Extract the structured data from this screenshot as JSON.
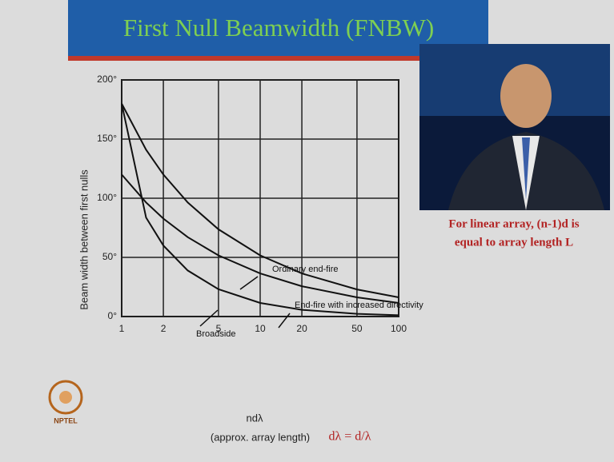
{
  "slide": {
    "title": "First Null Beamwidth (FNBW)",
    "note_line1": "For linear array, (n-1)d is",
    "note_line2": "equal to array length L",
    "d_lambda_note": "dλ = d/λ",
    "logo_text": "NPTEL"
  },
  "chart_data": {
    "type": "line",
    "x_label": "ndλ",
    "x_label_sub": "(approx. array length)",
    "y_label": "Beam width between first nulls",
    "x": [
      1,
      1.5,
      2,
      3,
      5,
      10,
      20,
      50,
      100
    ],
    "xlim": [
      1,
      100
    ],
    "xticks": [
      1,
      2,
      5,
      10,
      20,
      50,
      100
    ],
    "x_log": true,
    "ylim": [
      0,
      200
    ],
    "yticks": [
      {
        "value": 0,
        "label": "0°"
      },
      {
        "value": 50,
        "label": "50°"
      },
      {
        "value": 100,
        "label": "100°"
      },
      {
        "value": 150,
        "label": "150°"
      },
      {
        "value": 200,
        "label": "200°"
      }
    ],
    "grid": true,
    "series": [
      {
        "name": "Ordinary end-fire",
        "color": "#111111",
        "values": [
          180,
          141,
          120,
          96.4,
          73.7,
          51.7,
          36.4,
          22.9,
          16.2
        ]
      },
      {
        "name": "End-fire with increased directivity",
        "color": "#111111",
        "values": [
          120,
          96.4,
          82.8,
          67.1,
          51.7,
          36.4,
          25.6,
          16.2,
          11.5
        ]
      },
      {
        "name": "Broadside",
        "color": "#111111",
        "values": [
          180,
          83.6,
          60,
          38.9,
          23.1,
          11.5,
          5.7,
          2.3,
          1.1
        ]
      }
    ]
  }
}
